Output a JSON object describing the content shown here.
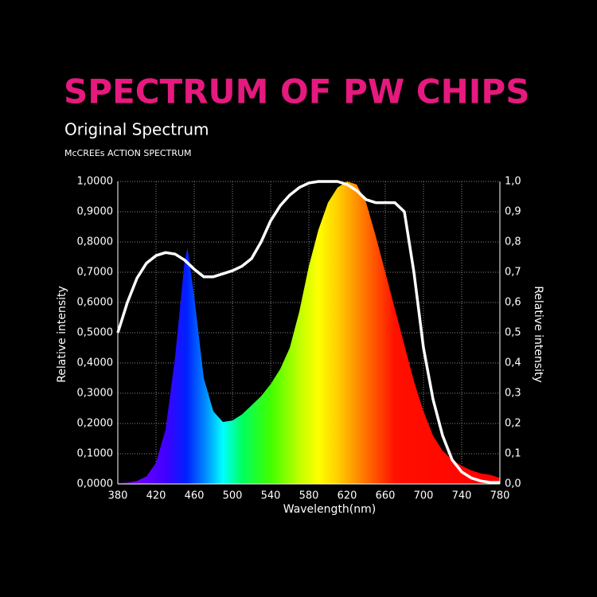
{
  "chart_data": {
    "type": "spectrum",
    "title": "SPECTRUM OF PW CHIPS",
    "xlabel": "Wavelength(nm)",
    "ylabel": "Relative intensity",
    "y2label": "Relative intensity",
    "xlim": [
      380,
      780
    ],
    "xticks": [
      380,
      420,
      460,
      500,
      540,
      580,
      620,
      660,
      700,
      740,
      780
    ],
    "ylim": [
      0,
      1
    ],
    "yticks": [
      {
        "value": 0,
        "label": "0,0000"
      },
      {
        "value": 0.1,
        "label": "0,1000"
      },
      {
        "value": 0.2,
        "label": "0,2000"
      },
      {
        "value": 0.3,
        "label": "0,3000"
      },
      {
        "value": 0.4,
        "label": "0,4000"
      },
      {
        "value": 0.5,
        "label": "0,5000"
      },
      {
        "value": 0.6,
        "label": "0,6000"
      },
      {
        "value": 0.7,
        "label": "0,7000"
      },
      {
        "value": 0.8,
        "label": "0,8000"
      },
      {
        "value": 0.9,
        "label": "0,9000"
      },
      {
        "value": 1,
        "label": "1,0000"
      }
    ],
    "y2lim": [
      0,
      1
    ],
    "y2ticks": [
      {
        "value": 0,
        "label": "0,0"
      },
      {
        "value": 0.1,
        "label": "0,1"
      },
      {
        "value": 0.2,
        "label": "0,2"
      },
      {
        "value": 0.3,
        "label": "0,3"
      },
      {
        "value": 0.4,
        "label": "0,4"
      },
      {
        "value": 0.5,
        "label": "0,5"
      },
      {
        "value": 0.6,
        "label": "0,6"
      },
      {
        "value": 0.7,
        "label": "0,7"
      },
      {
        "value": 0.8,
        "label": "0,8"
      },
      {
        "value": 0.9,
        "label": "0,9"
      },
      {
        "value": 1,
        "label": "1,0"
      }
    ],
    "grid": true,
    "series": [
      {
        "name": "Original Spectrum",
        "kind": "area",
        "x": [
          380,
          390,
          400,
          410,
          420,
          430,
          440,
          450,
          453,
          460,
          470,
          480,
          490,
          500,
          510,
          520,
          530,
          540,
          550,
          560,
          570,
          580,
          590,
          600,
          610,
          620,
          630,
          640,
          650,
          660,
          670,
          680,
          690,
          700,
          710,
          720,
          730,
          740,
          750,
          760,
          770,
          780
        ],
        "values": [
          0.003,
          0.005,
          0.01,
          0.025,
          0.07,
          0.18,
          0.42,
          0.74,
          0.78,
          0.62,
          0.35,
          0.24,
          0.205,
          0.21,
          0.23,
          0.26,
          0.29,
          0.33,
          0.38,
          0.45,
          0.57,
          0.72,
          0.84,
          0.93,
          0.98,
          1.0,
          0.99,
          0.93,
          0.82,
          0.7,
          0.58,
          0.46,
          0.34,
          0.24,
          0.16,
          0.11,
          0.08,
          0.06,
          0.045,
          0.035,
          0.03,
          0.02
        ]
      },
      {
        "name": "McCREEs ACTION SPECTRUM",
        "kind": "line",
        "color": "#ffffff",
        "axis": "y2",
        "x": [
          380,
          390,
          400,
          410,
          420,
          430,
          440,
          450,
          460,
          470,
          480,
          490,
          500,
          510,
          520,
          530,
          540,
          550,
          560,
          570,
          580,
          590,
          600,
          610,
          620,
          630,
          640,
          650,
          660,
          670,
          680,
          690,
          700,
          710,
          720,
          730,
          740,
          750,
          760,
          770,
          780
        ],
        "values": [
          0.5,
          0.6,
          0.68,
          0.73,
          0.755,
          0.765,
          0.76,
          0.74,
          0.71,
          0.685,
          0.685,
          0.695,
          0.705,
          0.72,
          0.745,
          0.8,
          0.87,
          0.92,
          0.955,
          0.98,
          0.995,
          1.0,
          1.0,
          1.0,
          0.99,
          0.97,
          0.94,
          0.93,
          0.93,
          0.93,
          0.9,
          0.7,
          0.45,
          0.28,
          0.16,
          0.08,
          0.04,
          0.02,
          0.01,
          0.005,
          0.005
        ]
      }
    ]
  }
}
